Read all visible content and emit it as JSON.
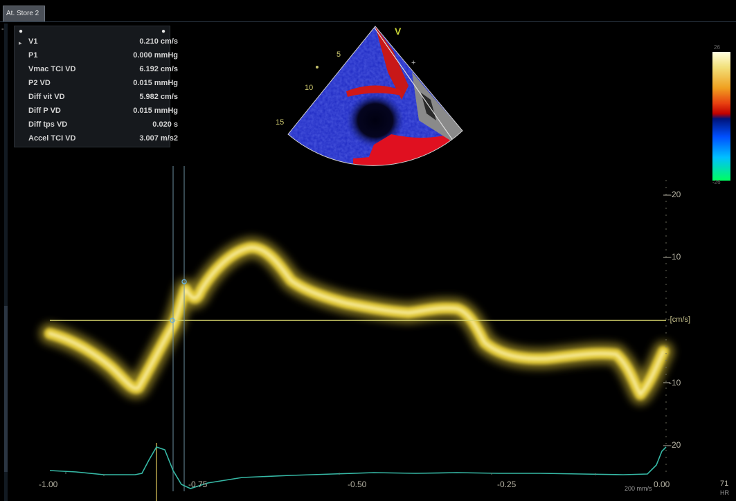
{
  "tab": {
    "label": "At. Store 2"
  },
  "corner_mark": "-",
  "measurements": {
    "rows": [
      {
        "label": "V1",
        "value": "0.210 cm/s"
      },
      {
        "label": "P1",
        "value": "0.000 mmHg"
      },
      {
        "label": "Vmac TCI VD",
        "value": "6.192 cm/s"
      },
      {
        "label": "P2 VD",
        "value": "0.015 mmHg"
      },
      {
        "label": "Diff vit VD",
        "value": "5.982 cm/s"
      },
      {
        "label": "Diff P VD",
        "value": "0.015 mmHg"
      },
      {
        "label": "Diff tps VD",
        "value": "0.020 s"
      },
      {
        "label": "Accel TCI VD",
        "value": "3.007 m/s2"
      }
    ]
  },
  "sector": {
    "mode_label": "V",
    "depth_labels": [
      "5",
      "10",
      "15"
    ]
  },
  "colorbar": {
    "top_label": "26",
    "bottom_label": "-26"
  },
  "doppler": {
    "y_ticks": [
      "20",
      "10",
      "[cm/s]",
      "-10",
      "-20"
    ],
    "x_ticks": [
      "-1.00",
      "-0.75",
      "-0.50",
      "-0.25",
      "0.00"
    ],
    "sweep_label": "200 mm/s",
    "heart_rate": "71",
    "hr_unit": "HR",
    "trace_color": "#f0d53a",
    "baseline_color": "#d8d66e",
    "ecg_color": "#36b9a6"
  }
}
